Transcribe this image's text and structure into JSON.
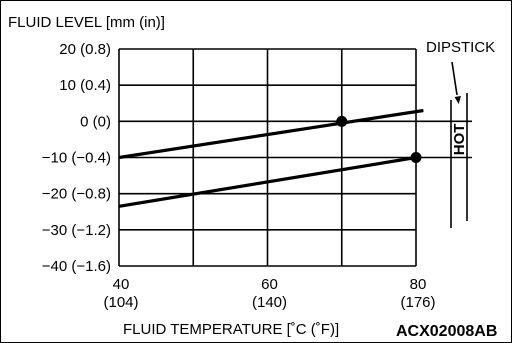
{
  "chart_data": {
    "type": "line",
    "ylabel": "FLUID LEVEL [mm (in)]",
    "xlabel": "FLUID TEMPERATURE [˚C (˚F)]",
    "figure_code": "ACX02008AB",
    "dipstick_label": "DIPSTICK",
    "hot_label": "HOT",
    "xlim": [
      40,
      80
    ],
    "ylim": [
      -40,
      20
    ],
    "x_ticks": [
      {
        "value": 40,
        "label": "40",
        "sublabel": "(104)"
      },
      {
        "value": 60,
        "label": "60",
        "sublabel": "(140)"
      },
      {
        "value": 80,
        "label": "80",
        "sublabel": "(176)"
      }
    ],
    "y_ticks": [
      {
        "value": 20,
        "label": "20 (0.8)"
      },
      {
        "value": 10,
        "label": "10 (0.4)"
      },
      {
        "value": 0,
        "label": "0 (0)"
      },
      {
        "value": -10,
        "label": "−10 (−0.4)"
      },
      {
        "value": -20,
        "label": "−20 (−0.8)"
      },
      {
        "value": -30,
        "label": "−30 (−1.2)"
      },
      {
        "value": -40,
        "label": "−40 (−1.6)"
      }
    ],
    "series": [
      {
        "x": [
          40,
          81
        ],
        "y": [
          -10,
          3
        ]
      },
      {
        "x": [
          40,
          80
        ],
        "y": [
          -23.5,
          -10
        ]
      }
    ],
    "points": [
      {
        "x": 70,
        "y": 0
      },
      {
        "x": 80,
        "y": -10
      }
    ]
  }
}
